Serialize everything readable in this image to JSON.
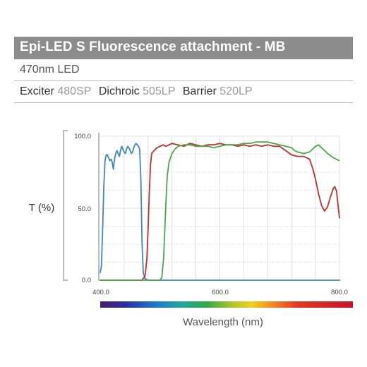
{
  "header": {
    "title": "Epi-LED S Fluorescence attachment - MB",
    "led": "470nm LED",
    "filters": [
      {
        "label": "Exciter",
        "value": "480SP"
      },
      {
        "label": "Dichroic",
        "value": "505LP"
      },
      {
        "label": "Barrier",
        "value": "520LP"
      }
    ]
  },
  "chart_data": {
    "type": "line",
    "title": "",
    "xlabel": "Wavelength (nm)",
    "ylabel": "T (%)",
    "xlim": [
      400,
      800
    ],
    "ylim": [
      0,
      100
    ],
    "x_ticks": [
      "400.0",
      "600.0",
      "800.0"
    ],
    "y_ticks": [
      "0.0",
      "50.0",
      "100.0"
    ],
    "grid": true,
    "legend": "none",
    "spectrum_bar": true,
    "series": [
      {
        "color": "#3a8ac4",
        "points": [
          [
            400,
            5
          ],
          [
            402,
            10
          ],
          [
            404,
            35
          ],
          [
            406,
            65
          ],
          [
            408,
            83
          ],
          [
            410,
            87
          ],
          [
            412,
            87
          ],
          [
            414,
            85
          ],
          [
            416,
            83
          ],
          [
            418,
            84
          ],
          [
            420,
            82
          ],
          [
            422,
            77
          ],
          [
            424,
            84
          ],
          [
            426,
            88
          ],
          [
            428,
            90
          ],
          [
            430,
            88
          ],
          [
            432,
            86
          ],
          [
            434,
            90
          ],
          [
            436,
            93
          ],
          [
            438,
            91
          ],
          [
            440,
            89
          ],
          [
            442,
            88
          ],
          [
            444,
            91
          ],
          [
            446,
            93
          ],
          [
            448,
            92
          ],
          [
            450,
            90
          ],
          [
            452,
            88
          ],
          [
            454,
            89
          ],
          [
            456,
            92
          ],
          [
            458,
            94
          ],
          [
            460,
            95
          ],
          [
            462,
            94
          ],
          [
            464,
            93
          ],
          [
            466,
            91
          ],
          [
            468,
            70
          ],
          [
            470,
            25
          ],
          [
            472,
            5
          ],
          [
            475,
            1
          ],
          [
            480,
            0
          ],
          [
            800,
            0
          ]
        ]
      },
      {
        "color": "#c0302c",
        "points": [
          [
            400,
            0
          ],
          [
            470,
            0
          ],
          [
            475,
            3
          ],
          [
            478,
            15
          ],
          [
            480,
            35
          ],
          [
            482,
            60
          ],
          [
            484,
            80
          ],
          [
            486,
            88
          ],
          [
            490,
            90
          ],
          [
            495,
            92
          ],
          [
            500,
            93
          ],
          [
            505,
            94
          ],
          [
            510,
            93
          ],
          [
            520,
            95
          ],
          [
            530,
            94
          ],
          [
            540,
            93
          ],
          [
            550,
            95
          ],
          [
            560,
            94
          ],
          [
            570,
            93
          ],
          [
            580,
            94
          ],
          [
            590,
            94
          ],
          [
            600,
            95
          ],
          [
            610,
            94
          ],
          [
            620,
            94
          ],
          [
            630,
            93
          ],
          [
            640,
            94
          ],
          [
            650,
            93
          ],
          [
            660,
            94
          ],
          [
            670,
            93
          ],
          [
            680,
            94
          ],
          [
            690,
            93
          ],
          [
            700,
            93
          ],
          [
            710,
            90
          ],
          [
            720,
            87
          ],
          [
            730,
            86
          ],
          [
            740,
            86
          ],
          [
            750,
            84
          ],
          [
            755,
            78
          ],
          [
            760,
            70
          ],
          [
            765,
            60
          ],
          [
            770,
            52
          ],
          [
            775,
            48
          ],
          [
            780,
            51
          ],
          [
            785,
            58
          ],
          [
            790,
            64
          ],
          [
            792,
            65
          ],
          [
            795,
            62
          ],
          [
            800,
            43
          ]
        ]
      },
      {
        "color": "#4aa84a",
        "points": [
          [
            400,
            0
          ],
          [
            500,
            0
          ],
          [
            503,
            2
          ],
          [
            506,
            15
          ],
          [
            508,
            35
          ],
          [
            510,
            55
          ],
          [
            512,
            72
          ],
          [
            515,
            82
          ],
          [
            520,
            88
          ],
          [
            525,
            91
          ],
          [
            530,
            93
          ],
          [
            540,
            94
          ],
          [
            550,
            94
          ],
          [
            560,
            93
          ],
          [
            570,
            93
          ],
          [
            580,
            93
          ],
          [
            590,
            92
          ],
          [
            600,
            93
          ],
          [
            610,
            94
          ],
          [
            620,
            94
          ],
          [
            630,
            94
          ],
          [
            640,
            95
          ],
          [
            650,
            95
          ],
          [
            660,
            96
          ],
          [
            670,
            96
          ],
          [
            680,
            96
          ],
          [
            690,
            95
          ],
          [
            700,
            94
          ],
          [
            710,
            93
          ],
          [
            720,
            92
          ],
          [
            725,
            90
          ],
          [
            730,
            89
          ],
          [
            740,
            88
          ],
          [
            750,
            89
          ],
          [
            760,
            93
          ],
          [
            765,
            94
          ],
          [
            770,
            92
          ],
          [
            780,
            88
          ],
          [
            790,
            85
          ],
          [
            800,
            83
          ]
        ]
      }
    ]
  }
}
